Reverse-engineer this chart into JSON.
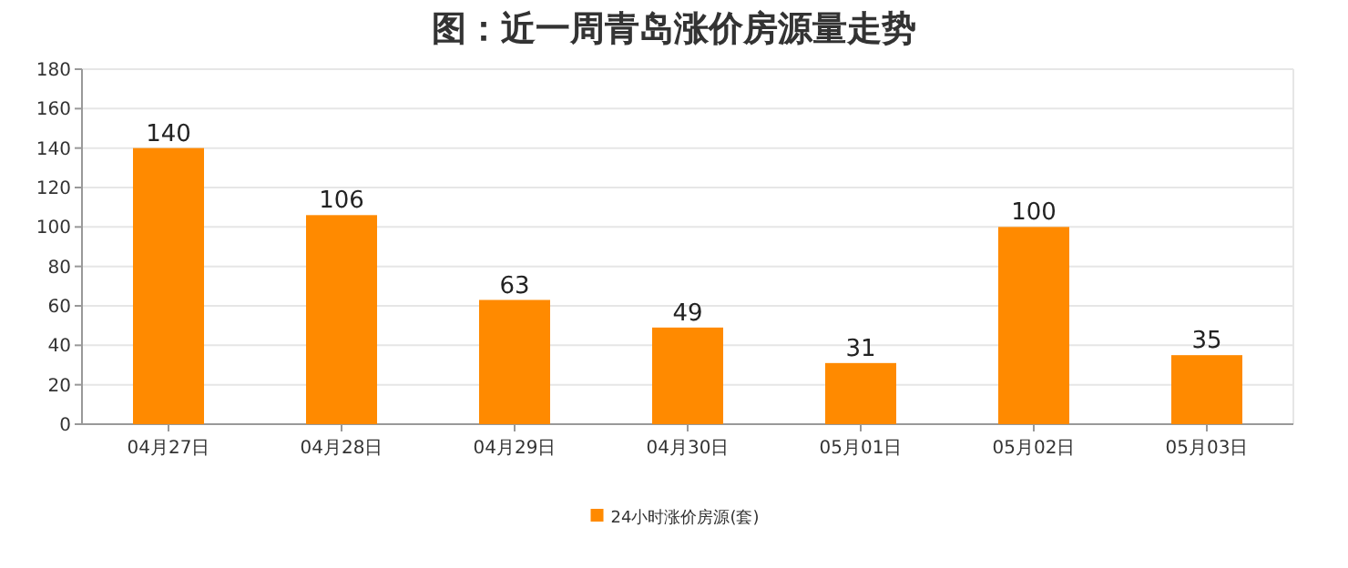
{
  "chart_data": {
    "type": "bar",
    "title": "图：近一周青岛涨价房源量走势",
    "categories": [
      "04月27日",
      "04月28日",
      "04月29日",
      "04月30日",
      "05月01日",
      "05月02日",
      "05月03日"
    ],
    "series": [
      {
        "name": "24小时涨价房源(套)",
        "color": "#ff8a00",
        "values": [
          140,
          106,
          63,
          49,
          31,
          100,
          35
        ]
      }
    ],
    "ylim": [
      0,
      180
    ],
    "yticks": [
      0,
      20,
      40,
      60,
      80,
      100,
      120,
      140,
      160,
      180
    ],
    "grid": "y",
    "legend": "bottom",
    "data_labels": true
  }
}
